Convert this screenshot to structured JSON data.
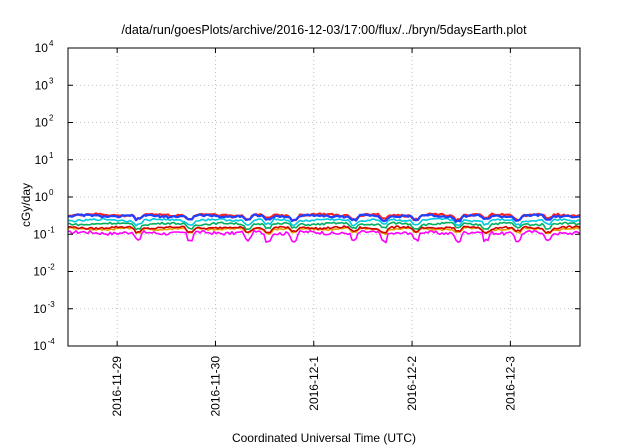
{
  "chart_data": {
    "type": "line",
    "title": "/data/run/goesPlots/archive/2016-12-03/17:00/flux/../bryn/5daysEarth.plot",
    "xlabel": "Coordinated Universal Time (UTC)",
    "ylabel": "cGy/day",
    "yscale": "log",
    "ylim": [
      0.0001,
      10000
    ],
    "y_ticks": [
      {
        "base": "10",
        "exp": "-4"
      },
      {
        "base": "10",
        "exp": "-3"
      },
      {
        "base": "10",
        "exp": "-2"
      },
      {
        "base": "10",
        "exp": "-1"
      },
      {
        "base": "10",
        "exp": "0"
      },
      {
        "base": "10",
        "exp": "1"
      },
      {
        "base": "10",
        "exp": "2"
      },
      {
        "base": "10",
        "exp": "3"
      },
      {
        "base": "10",
        "exp": "4"
      }
    ],
    "x_range": [
      "2016-11-28T12:00",
      "2016-12-03T17:00"
    ],
    "x_ticks": [
      "2016-11-29",
      "2016-11-30",
      "2016-12-1",
      "2016-12-2",
      "2016-12-3"
    ],
    "grid": true,
    "legend": "none",
    "series": [
      {
        "color": "#ff00ff",
        "base": 0.11,
        "points": [
          [
            "2016-11-28T12:00",
            0.11
          ],
          [
            "2016-11-29T00:00",
            0.11
          ],
          [
            "2016-11-30T00:00",
            0.11
          ],
          [
            "2016-12-01T00:00",
            0.11
          ],
          [
            "2016-12-02T00:00",
            0.11
          ],
          [
            "2016-12-03T00:00",
            0.11
          ],
          [
            "2016-12-03T17:00",
            0.11
          ]
        ]
      },
      {
        "color": "#e8a000",
        "base": 0.14,
        "points": [
          [
            "2016-11-28T12:00",
            0.14
          ],
          [
            "2016-11-29T00:00",
            0.14
          ],
          [
            "2016-11-30T00:00",
            0.14
          ],
          [
            "2016-12-01T00:00",
            0.14
          ],
          [
            "2016-12-02T00:00",
            0.14
          ],
          [
            "2016-12-03T00:00",
            0.14
          ],
          [
            "2016-12-03T17:00",
            0.14
          ]
        ]
      },
      {
        "color": "#d40000",
        "base": 0.15,
        "points": [
          [
            "2016-11-28T12:00",
            0.15
          ],
          [
            "2016-11-29T00:00",
            0.15
          ],
          [
            "2016-11-30T00:00",
            0.15
          ],
          [
            "2016-12-01T00:00",
            0.15
          ],
          [
            "2016-12-02T00:00",
            0.15
          ],
          [
            "2016-12-03T00:00",
            0.15
          ],
          [
            "2016-12-03T17:00",
            0.15
          ]
        ]
      },
      {
        "color": "#00b060",
        "base": 0.19,
        "points": [
          [
            "2016-11-28T12:00",
            0.19
          ],
          [
            "2016-11-29T00:00",
            0.19
          ],
          [
            "2016-11-30T00:00",
            0.19
          ],
          [
            "2016-12-01T00:00",
            0.19
          ],
          [
            "2016-12-02T00:00",
            0.19
          ],
          [
            "2016-12-03T00:00",
            0.19
          ],
          [
            "2016-12-03T17:00",
            0.19
          ]
        ]
      },
      {
        "color": "#00c8e0",
        "base": 0.24,
        "points": [
          [
            "2016-11-28T12:00",
            0.24
          ],
          [
            "2016-11-29T00:00",
            0.24
          ],
          [
            "2016-11-30T00:00",
            0.24
          ],
          [
            "2016-12-01T00:00",
            0.24
          ],
          [
            "2016-12-02T00:00",
            0.24
          ],
          [
            "2016-12-03T00:00",
            0.24
          ],
          [
            "2016-12-03T17:00",
            0.24
          ]
        ]
      },
      {
        "color": "#ff2020",
        "base": 0.33,
        "points": [
          [
            "2016-11-28T12:00",
            0.33
          ],
          [
            "2016-11-29T00:00",
            0.33
          ],
          [
            "2016-11-30T00:00",
            0.33
          ],
          [
            "2016-12-01T00:00",
            0.33
          ],
          [
            "2016-12-02T00:00",
            0.33
          ],
          [
            "2016-12-03T00:00",
            0.33
          ],
          [
            "2016-12-03T17:00",
            0.33
          ]
        ]
      },
      {
        "color": "#2040ff",
        "base": 0.31,
        "points": [
          [
            "2016-11-28T12:00",
            0.31
          ],
          [
            "2016-11-29T00:00",
            0.31
          ],
          [
            "2016-11-30T00:00",
            0.31
          ],
          [
            "2016-12-01T00:00",
            0.31
          ],
          [
            "2016-12-02T00:00",
            0.31
          ],
          [
            "2016-12-03T00:00",
            0.31
          ],
          [
            "2016-12-03T17:00",
            0.31
          ]
        ]
      }
    ],
    "dip_times": [
      "2016-11-29T05:00",
      "2016-11-29T18:00",
      "2016-11-30T08:00",
      "2016-11-30T13:00",
      "2016-11-30T19:00",
      "2016-12-01T10:00",
      "2016-12-01T17:00",
      "2016-12-02T01:00",
      "2016-12-02T11:00",
      "2016-12-02T18:00",
      "2016-12-03T02:00",
      "2016-12-03T09:00"
    ]
  }
}
